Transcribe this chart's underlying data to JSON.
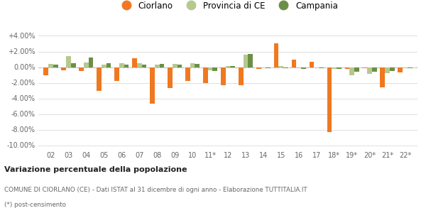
{
  "years": [
    "02",
    "03",
    "04",
    "05",
    "06",
    "07",
    "08",
    "09",
    "10",
    "11*",
    "12",
    "13",
    "14",
    "15",
    "16",
    "17",
    "18*",
    "19*",
    "20*",
    "21*",
    "22*"
  ],
  "ciorlano": [
    -1.0,
    -0.4,
    -0.5,
    -3.0,
    -1.8,
    1.1,
    -4.7,
    -2.7,
    -1.8,
    -2.0,
    -2.3,
    -2.3,
    -0.2,
    3.0,
    1.0,
    0.7,
    -8.3,
    -0.2,
    -0.1,
    -2.6,
    -0.7
  ],
  "provincia_ce": [
    0.4,
    1.4,
    0.6,
    0.3,
    0.5,
    0.5,
    0.3,
    0.4,
    0.5,
    -0.4,
    0.1,
    1.6,
    0.0,
    0.1,
    -0.1,
    0.0,
    -0.2,
    -1.0,
    -0.9,
    -0.8,
    -0.1
  ],
  "campania": [
    0.3,
    0.5,
    1.2,
    0.5,
    0.3,
    0.3,
    0.4,
    0.3,
    0.4,
    -0.5,
    0.1,
    1.7,
    -0.1,
    -0.1,
    -0.2,
    -0.1,
    -0.2,
    -0.6,
    -0.6,
    -0.5,
    -0.1
  ],
  "color_ciorlano": "#f07820",
  "color_provincia": "#b5c98e",
  "color_campania": "#6b8f47",
  "title": "Variazione percentuale della popolazione",
  "subtitle1": "COMUNE DI CIORLANO (CE) - Dati ISTAT al 31 dicembre di ogni anno - Elaborazione TUTTITALIA.IT",
  "subtitle2": "(*) post-censimento",
  "legend_labels": [
    "Ciorlano",
    "Provincia di CE",
    "Campania"
  ],
  "ylim": [
    -10.5,
    4.5
  ],
  "yticks": [
    -10.0,
    -8.0,
    -6.0,
    -4.0,
    -2.0,
    0.0,
    2.0,
    4.0
  ],
  "ytick_labels": [
    "-10.00%",
    "-8.00%",
    "-6.00%",
    "-4.00%",
    "-2.00%",
    "0.00%",
    "+2.00%",
    "+4.00%"
  ],
  "background_color": "#ffffff",
  "grid_color": "#e0e0e0"
}
